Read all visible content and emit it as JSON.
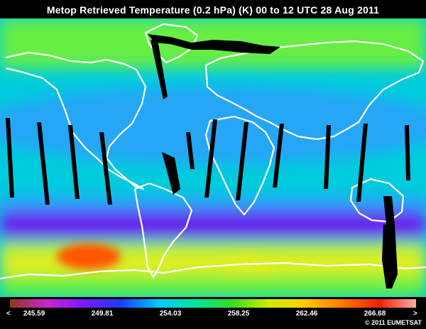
{
  "title": "Metop Retrieved Temperature (0.2 hPa) (K)  00 to 12 UTC  28 Aug 2011",
  "colorbar": {
    "left_arrow": "<",
    "right_arrow": ">",
    "ticks": [
      "245.59",
      "249.81",
      "254.03",
      "258.25",
      "262.46",
      "266.68"
    ],
    "colors": [
      "#8b3a1a",
      "#cc22cc",
      "#7a1aff",
      "#1a3cff",
      "#00c8ff",
      "#00e5a0",
      "#33dd22",
      "#ccee00",
      "#ffcc00",
      "#ff7700",
      "#ee2200",
      "#ffaaaa"
    ]
  },
  "copyright": "© 2011 EUMETSAT",
  "map": {
    "colors": {
      "background": "#00ccdd",
      "mid_lat_band": "#3399ff",
      "north_band": "#66ee44",
      "south_purple": "#6622ee",
      "south_warm": "#ddee22",
      "hot_spot": "#ff5500",
      "coastline": "#ffffff",
      "no_data": "#000000"
    }
  }
}
